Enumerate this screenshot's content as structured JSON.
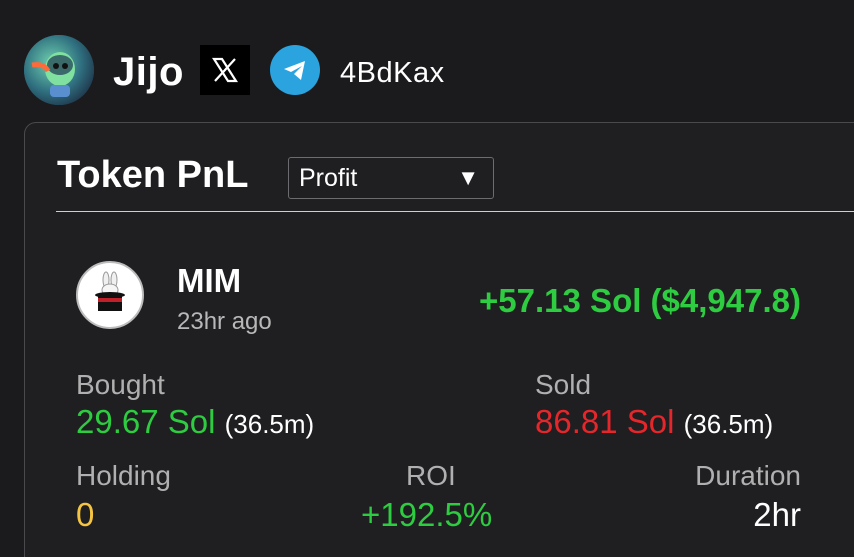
{
  "header": {
    "username": "Jijo",
    "x_icon": "x-logo-icon",
    "telegram_icon": "telegram-icon",
    "handle": "4BdKax"
  },
  "card": {
    "title": "Token PnL",
    "filter": {
      "selected": "Profit",
      "arrow": "▼"
    },
    "token": {
      "name": "MIM",
      "time_ago": "23hr ago",
      "pnl": "+57.13 Sol ($4,947.8)",
      "logo_icon": "magician-hat-rabbit-icon"
    },
    "stats": {
      "bought_label": "Bought",
      "bought_value": "29.67 Sol",
      "bought_count": "(36.5m)",
      "sold_label": "Sold",
      "sold_value": "86.81 Sol",
      "sold_count": "(36.5m)",
      "holding_label": "Holding",
      "holding_value": "0",
      "roi_label": "ROI",
      "roi_value": "+192.5%",
      "duration_label": "Duration",
      "duration_value": "2hr"
    }
  },
  "colors": {
    "background": "#1b1b1e",
    "profit_green": "#2ecc40",
    "loss_red": "#e5262b",
    "holding_yellow": "#f5c542",
    "telegram_blue": "#2aa3df"
  }
}
